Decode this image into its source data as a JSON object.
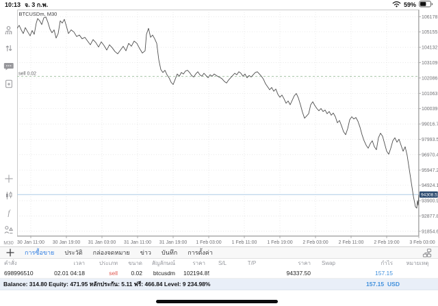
{
  "status_bar": {
    "time": "10:13",
    "date": "จ. 3 ก.พ.",
    "battery_percent": "59%",
    "battery_level": 0.59
  },
  "sidebar": {
    "timeframe_label": "M30"
  },
  "chart_data": {
    "type": "line",
    "title": "BTCUSDm, M30",
    "symbol": "BTCUSDm",
    "timeframe": "M30",
    "grid": true,
    "y_ticks": [
      "106178.75",
      "105155.60",
      "104132.45",
      "103109.30",
      "102086.15",
      "101063.00",
      "100039.85",
      "99016.70",
      "97993.55",
      "96970.40",
      "95947.25",
      "94924.10",
      "93900.95",
      "92877.80",
      "91854.65"
    ],
    "x_ticks": [
      "30 Jan 11:00",
      "30 Jan 19:00",
      "31 Jan 03:00",
      "31 Jan 11:00",
      "31 Jan 19:00",
      "1 Feb 03:00",
      "1 Feb 11:00",
      "1 Feb 19:00",
      "2 Feb 03:00",
      "2 Feb 11:00",
      "2 Feb 19:00",
      "3 Feb 03:00"
    ],
    "price_range": {
      "min": 91530,
      "max": 106650
    },
    "open_position": {
      "label": "sell 0.02",
      "price": 102194.85
    },
    "current_price": 94308.51,
    "current_price_label": "94308.51",
    "series": [
      {
        "name": "BTCUSDm M30 close",
        "points": [
          [
            0,
            105400
          ],
          [
            3,
            105600
          ],
          [
            6,
            105300
          ],
          [
            9,
            105050
          ],
          [
            12,
            105450
          ],
          [
            15,
            105200
          ],
          [
            19,
            104900
          ],
          [
            22,
            105250
          ],
          [
            25,
            105000
          ],
          [
            28,
            105750
          ],
          [
            30,
            106050
          ],
          [
            33,
            105900
          ],
          [
            36,
            105650
          ],
          [
            39,
            106100
          ],
          [
            42,
            106150
          ],
          [
            45,
            105800
          ],
          [
            48,
            105350
          ],
          [
            51,
            105100
          ],
          [
            54,
            105300
          ],
          [
            57,
            104750
          ],
          [
            60,
            105050
          ],
          [
            63,
            105900
          ],
          [
            66,
            105750
          ],
          [
            69,
            106000
          ],
          [
            72,
            105550
          ],
          [
            75,
            105050
          ],
          [
            79,
            105300
          ],
          [
            83,
            105150
          ],
          [
            87,
            104850
          ],
          [
            91,
            104950
          ],
          [
            95,
            104700
          ],
          [
            99,
            104800
          ],
          [
            103,
            104550
          ],
          [
            107,
            104300
          ],
          [
            111,
            104650
          ],
          [
            115,
            104450
          ],
          [
            119,
            104150
          ],
          [
            123,
            104500
          ],
          [
            127,
            104250
          ],
          [
            131,
            103950
          ],
          [
            135,
            104300
          ],
          [
            139,
            104100
          ],
          [
            143,
            103850
          ],
          [
            147,
            103700
          ],
          [
            151,
            103950
          ],
          [
            155,
            104200
          ],
          [
            159,
            103900
          ],
          [
            163,
            104400
          ],
          [
            167,
            104200
          ],
          [
            171,
            104550
          ],
          [
            175,
            104400
          ],
          [
            179,
            104050
          ],
          [
            183,
            103750
          ],
          [
            187,
            103900
          ],
          [
            189,
            105000
          ],
          [
            192,
            105400
          ],
          [
            195,
            104800
          ],
          [
            198,
            104950
          ],
          [
            201,
            104700
          ],
          [
            204,
            104400
          ],
          [
            207,
            103300
          ],
          [
            210,
            102650
          ],
          [
            213,
            102450
          ],
          [
            216,
            102600
          ],
          [
            219,
            102300
          ],
          [
            222,
            102100
          ],
          [
            225,
            101800
          ],
          [
            228,
            101650
          ],
          [
            231,
            102000
          ],
          [
            234,
            102350
          ],
          [
            237,
            102200
          ],
          [
            240,
            102450
          ],
          [
            243,
            102350
          ],
          [
            246,
            102550
          ],
          [
            249,
            102600
          ],
          [
            252,
            102450
          ],
          [
            255,
            102250
          ],
          [
            258,
            102150
          ],
          [
            261,
            102350
          ],
          [
            264,
            102500
          ],
          [
            267,
            102300
          ],
          [
            270,
            102200
          ],
          [
            273,
            102400
          ],
          [
            276,
            102250
          ],
          [
            279,
            102100
          ],
          [
            282,
            102300
          ],
          [
            285,
            102200
          ],
          [
            288,
            102350
          ],
          [
            291,
            102250
          ],
          [
            295,
            102150
          ],
          [
            299,
            102050
          ],
          [
            303,
            101850
          ],
          [
            306,
            101750
          ],
          [
            309,
            101950
          ],
          [
            312,
            102100
          ],
          [
            315,
            102250
          ],
          [
            318,
            102400
          ],
          [
            321,
            102300
          ],
          [
            324,
            102500
          ],
          [
            327,
            102400
          ],
          [
            330,
            102200
          ],
          [
            333,
            102350
          ],
          [
            336,
            102100
          ],
          [
            339,
            102250
          ],
          [
            342,
            102150
          ],
          [
            345,
            102300
          ],
          [
            348,
            102450
          ],
          [
            351,
            102500
          ],
          [
            354,
            102350
          ],
          [
            357,
            102200
          ],
          [
            360,
            102000
          ],
          [
            363,
            101700
          ],
          [
            366,
            101500
          ],
          [
            369,
            101300
          ],
          [
            372,
            101450
          ],
          [
            375,
            101200
          ],
          [
            378,
            101350
          ],
          [
            381,
            101000
          ],
          [
            384,
            100800
          ],
          [
            387,
            100950
          ],
          [
            390,
            100700
          ],
          [
            393,
            100400
          ],
          [
            396,
            100550
          ],
          [
            399,
            100300
          ],
          [
            402,
            100600
          ],
          [
            405,
            100900
          ],
          [
            408,
            101050
          ],
          [
            411,
            100750
          ],
          [
            414,
            100300
          ],
          [
            417,
            99800
          ],
          [
            420,
            99400
          ],
          [
            423,
            99550
          ],
          [
            426,
            99700
          ],
          [
            429,
            100300
          ],
          [
            432,
            100500
          ],
          [
            435,
            100250
          ],
          [
            438,
            100050
          ],
          [
            441,
            99900
          ],
          [
            444,
            100050
          ],
          [
            447,
            99850
          ],
          [
            450,
            99950
          ],
          [
            453,
            99700
          ],
          [
            456,
            99850
          ],
          [
            459,
            99600
          ],
          [
            462,
            99750
          ],
          [
            465,
            99500
          ],
          [
            468,
            99100
          ],
          [
            471,
            99250
          ],
          [
            474,
            98900
          ],
          [
            477,
            98500
          ],
          [
            480,
            98300
          ],
          [
            483,
            98700
          ],
          [
            486,
            99300
          ],
          [
            489,
            99500
          ],
          [
            492,
            99350
          ],
          [
            495,
            99450
          ],
          [
            498,
            99200
          ],
          [
            501,
            98800
          ],
          [
            504,
            98300
          ],
          [
            507,
            97900
          ],
          [
            510,
            97600
          ],
          [
            513,
            97400
          ],
          [
            516,
            97700
          ],
          [
            519,
            97900
          ],
          [
            522,
            97500
          ],
          [
            525,
            97300
          ],
          [
            528,
            98100
          ],
          [
            531,
            98400
          ],
          [
            534,
            98200
          ],
          [
            537,
            97700
          ],
          [
            540,
            97200
          ],
          [
            543,
            97000
          ],
          [
            546,
            97400
          ],
          [
            549,
            97900
          ],
          [
            552,
            98100
          ],
          [
            555,
            97800
          ],
          [
            558,
            98000
          ],
          [
            561,
            97600
          ],
          [
            564,
            97200
          ],
          [
            567,
            97500
          ],
          [
            570,
            96900
          ],
          [
            573,
            96000
          ],
          [
            576,
            95100
          ],
          [
            579,
            94200
          ],
          [
            582,
            93500
          ],
          [
            584,
            93400
          ],
          [
            585,
            93900
          ],
          [
            586,
            93600
          ],
          [
            587,
            94308.51
          ]
        ]
      }
    ]
  },
  "tabs": {
    "items": [
      {
        "label": "การซื้อขาย",
        "selected": true
      },
      {
        "label": "ประวัติ",
        "selected": false
      },
      {
        "label": "กล่องจดหมาย",
        "selected": false
      },
      {
        "label": "ข่าว",
        "selected": false
      },
      {
        "label": "บันทึก",
        "selected": false
      },
      {
        "label": "การตั้งค่า",
        "selected": false
      }
    ]
  },
  "table": {
    "headers": [
      "คำสั่ง",
      "เวลา",
      "ประเภท",
      "ขนาด",
      "สัญลักษณ์",
      "ราคา",
      "S/L",
      "T/P",
      "ราคา",
      "Swap",
      "กำไร",
      "หมายเหตุ"
    ],
    "row": {
      "order": "698996510",
      "time": "02.01 04:18",
      "type": "sell",
      "size": "0.02",
      "symbol": "btcusdm",
      "open_price": "102194.85",
      "sl": "",
      "tp": "",
      "price": "94337.50",
      "swap": "",
      "profit": "157.15",
      "note": ""
    }
  },
  "balance": {
    "summary": "Balance: 314.80 Equity: 471.95 หลักประกัน: 5.11 ฟรี: 466.84 Level: 9 234.98%",
    "profit": "157.15",
    "currency": "USD"
  },
  "colors": {
    "accent_blue": "#2f7de1",
    "sell_red": "#e0564e",
    "profit_blue": "#3f8fdc",
    "price_badge": "#2b4a6f",
    "price_line": "#aecbe6",
    "open_line": "#a9c6a9",
    "series_line": "#4d4d4d",
    "grid": "#dedede",
    "axis": "#9a9a9a",
    "axis_text": "#6f6f73"
  }
}
